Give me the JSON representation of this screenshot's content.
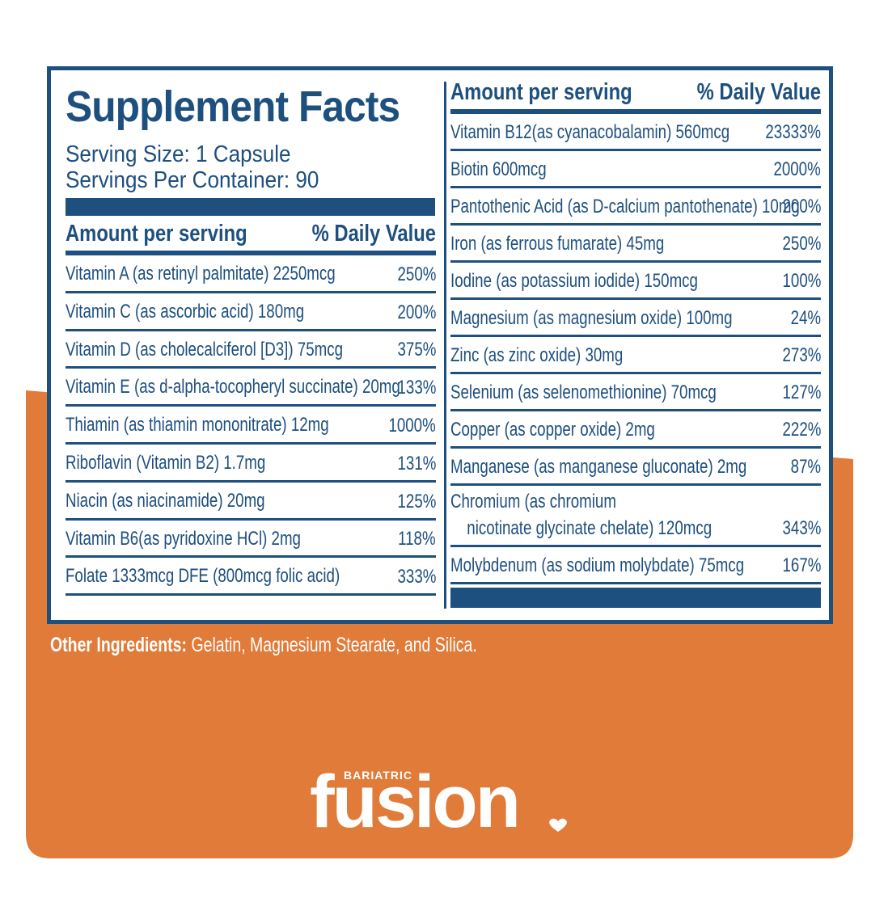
{
  "title": "Supplement Facts",
  "serving_size": "Serving Size: 1 Capsule",
  "servings_per_container": "Servings Per Container: 90",
  "columns": [
    {
      "header": {
        "amount": "Amount per serving",
        "daily_value": "% Daily Value"
      },
      "rows": [
        {
          "name": [
            "Vitamin A (as retinyl palmitate) 2250mcg"
          ],
          "dv": "250%"
        },
        {
          "name": [
            "Vitamin C (as ascorbic acid) 180mg"
          ],
          "dv": "200%"
        },
        {
          "name": [
            "Vitamin D (as cholecalciferol [D3]) 75mcg"
          ],
          "dv": "375%"
        },
        {
          "name": [
            "Vitamin E (as d-alpha-tocopheryl succinate) 20mg"
          ],
          "dv": "133%"
        },
        {
          "name": [
            "Thiamin (as thiamin mononitrate) 12mg"
          ],
          "dv": "1000%"
        },
        {
          "name": [
            "Riboflavin (Vitamin B2) 1.7mg"
          ],
          "dv": "131%"
        },
        {
          "name": [
            "Niacin (as niacinamide) 20mg"
          ],
          "dv": "125%"
        },
        {
          "name": [
            "Vitamin B6(as pyridoxine HCl) 2mg"
          ],
          "dv": "118%"
        },
        {
          "name": [
            "Folate 1333mcg DFE (800mcg folic acid)"
          ],
          "dv": "333%"
        }
      ]
    },
    {
      "header": {
        "amount": "Amount per serving",
        "daily_value": "% Daily Value"
      },
      "rows": [
        {
          "name": [
            "Vitamin B12(as cyanacobalamin) 560mcg"
          ],
          "dv": "23333%"
        },
        {
          "name": [
            "Biotin 600mcg"
          ],
          "dv": "2000%"
        },
        {
          "name": [
            "Pantothenic Acid (as D-calcium pantothenate) 10mg"
          ],
          "dv": "200%"
        },
        {
          "name": [
            "Iron (as ferrous fumarate) 45mg"
          ],
          "dv": "250%"
        },
        {
          "name": [
            "Iodine (as potassium iodide) 150mcg"
          ],
          "dv": "100%"
        },
        {
          "name": [
            "Magnesium (as magnesium oxide) 100mg"
          ],
          "dv": "24%"
        },
        {
          "name": [
            "Zinc (as zinc oxide) 30mg"
          ],
          "dv": "273%"
        },
        {
          "name": [
            "Selenium (as selenomethionine) 70mcg"
          ],
          "dv": "127%"
        },
        {
          "name": [
            "Copper (as copper oxide) 2mg"
          ],
          "dv": "222%"
        },
        {
          "name": [
            "Manganese (as manganese gluconate) 2mg"
          ],
          "dv": "87%"
        },
        {
          "name": [
            "Chromium (as chromium",
            "nicotinate glycinate chelate) 120mcg"
          ],
          "dv": "343%"
        },
        {
          "name": [
            "Molybdenum (as sodium molybdate) 75mcg"
          ],
          "dv": "167%"
        }
      ]
    }
  ],
  "other_ingredients": {
    "label": "Other Ingredients:",
    "text": "Gelatin, Magnesium Stearate, and Silica."
  },
  "brand": {
    "small": "BARIATRIC",
    "name": "fusion"
  }
}
